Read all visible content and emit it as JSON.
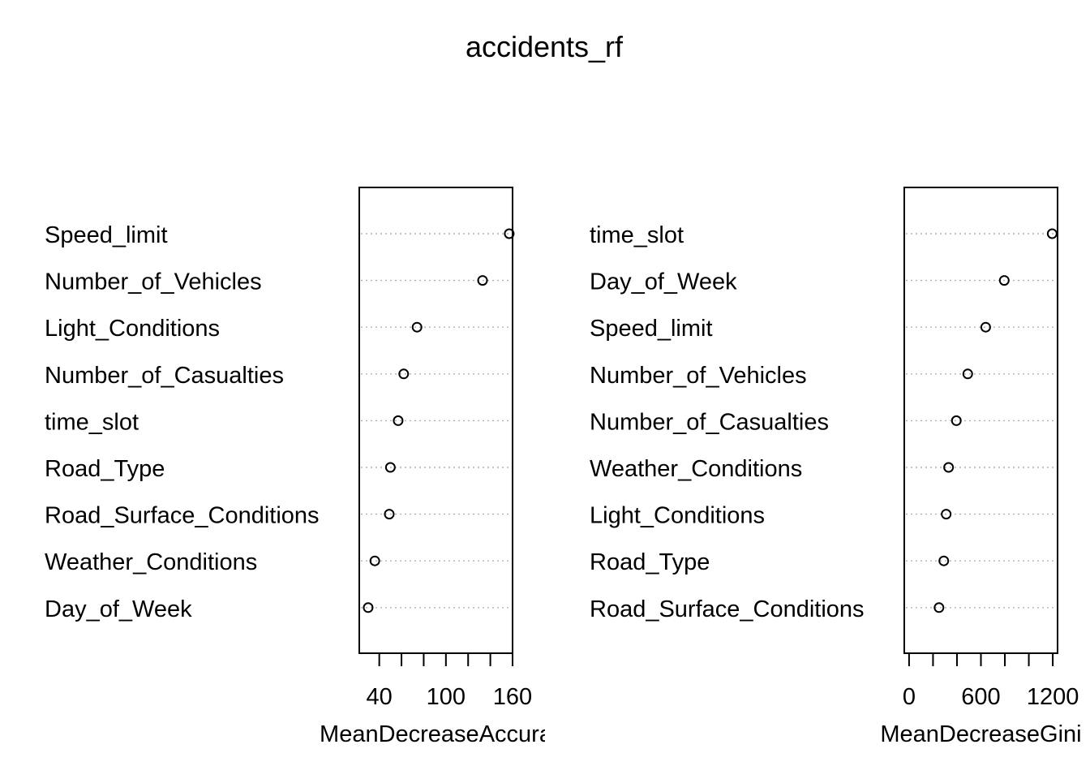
{
  "title": "accidents_rf",
  "chart_data": [
    {
      "type": "scatter",
      "subtype": "dotchart",
      "title": "accidents_rf",
      "xlabel": "MeanDecreaseAccuracy",
      "xlabel_visible": "MeanDecreaseAccura",
      "ylabel": "",
      "xlim": [
        22,
        160
      ],
      "xticks": [
        40,
        60,
        80,
        100,
        120,
        140,
        160
      ],
      "xtick_labels": [
        "40",
        "",
        "",
        "100",
        "",
        "",
        "160"
      ],
      "grid": "dotted horizontal guide lines",
      "categories": [
        "Speed_limit",
        "Number_of_Vehicles",
        "Light_Conditions",
        "Number_of_Casualties",
        "time_slot",
        "Road_Type",
        "Road_Surface_Conditions",
        "Weather_Conditions",
        "Day_of_Week"
      ],
      "values": [
        157,
        133,
        74,
        62,
        57,
        50,
        49,
        36,
        30
      ]
    },
    {
      "type": "scatter",
      "subtype": "dotchart",
      "title": "accidents_rf",
      "xlabel": "MeanDecreaseGini",
      "xlabel_visible": "MeanDecreaseGini",
      "ylabel": "",
      "xlim": [
        -40,
        1240
      ],
      "xticks": [
        0,
        200,
        400,
        600,
        800,
        1000,
        1200
      ],
      "xtick_labels": [
        "0",
        "",
        "",
        "600",
        "",
        "",
        "1200"
      ],
      "grid": "dotted horizontal guide lines",
      "categories": [
        "time_slot",
        "Day_of_Week",
        "Speed_limit",
        "Number_of_Vehicles",
        "Number_of_Casualties",
        "Weather_Conditions",
        "Light_Conditions",
        "Road_Type",
        "Road_Surface_Conditions"
      ],
      "values": [
        1195,
        795,
        640,
        490,
        395,
        330,
        310,
        290,
        250
      ]
    }
  ]
}
